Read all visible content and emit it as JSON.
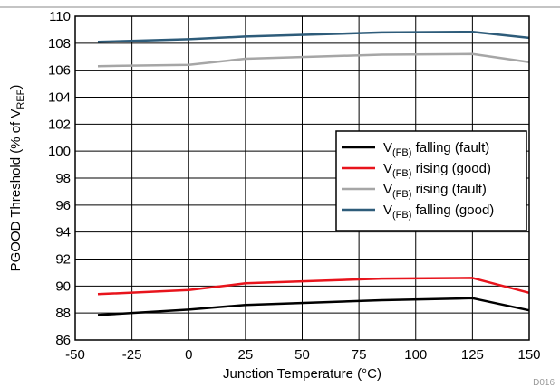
{
  "chart_data": {
    "type": "line",
    "title": "",
    "xlabel": {
      "prefix": "Junction Temperature (",
      "unit": "°C",
      "suffix": ")"
    },
    "ylabel": {
      "prefix": "PGOOD Threshold (% of V",
      "sub": "REF",
      "suffix": ")"
    },
    "xlim": [
      -50,
      150
    ],
    "ylim": [
      86,
      110
    ],
    "xticks": [
      -50,
      -25,
      0,
      25,
      50,
      75,
      100,
      125,
      150
    ],
    "yticks": [
      86,
      88,
      90,
      92,
      94,
      96,
      98,
      100,
      102,
      104,
      106,
      108,
      110
    ],
    "grid": true,
    "legend_position": "center-right",
    "figure_code": "D016",
    "series": [
      {
        "name": {
          "main": "V",
          "sub": "(FB)",
          "rest": " falling (fault)"
        },
        "color": "#000000",
        "x": [
          -40,
          0,
          25,
          85,
          125,
          150
        ],
        "y": [
          87.85,
          88.25,
          88.6,
          88.95,
          89.1,
          88.2
        ]
      },
      {
        "name": {
          "main": "V",
          "sub": "(FB)",
          "rest": " rising (good)"
        },
        "color": "#e8141c",
        "x": [
          -40,
          0,
          25,
          85,
          125,
          150
        ],
        "y": [
          89.4,
          89.7,
          90.2,
          90.55,
          90.6,
          89.5
        ]
      },
      {
        "name": {
          "main": "V",
          "sub": "(FB)",
          "rest": " rising (fault)"
        },
        "color": "#a6a6a6",
        "x": [
          -40,
          0,
          25,
          85,
          125,
          150
        ],
        "y": [
          106.3,
          106.4,
          106.85,
          107.15,
          107.2,
          106.6
        ]
      },
      {
        "name": {
          "main": "V",
          "sub": "(FB)",
          "rest": " falling (good)"
        },
        "color": "#2e5c7a",
        "x": [
          -40,
          0,
          25,
          85,
          125,
          150
        ],
        "y": [
          108.1,
          108.3,
          108.5,
          108.8,
          108.85,
          108.4
        ]
      }
    ]
  }
}
